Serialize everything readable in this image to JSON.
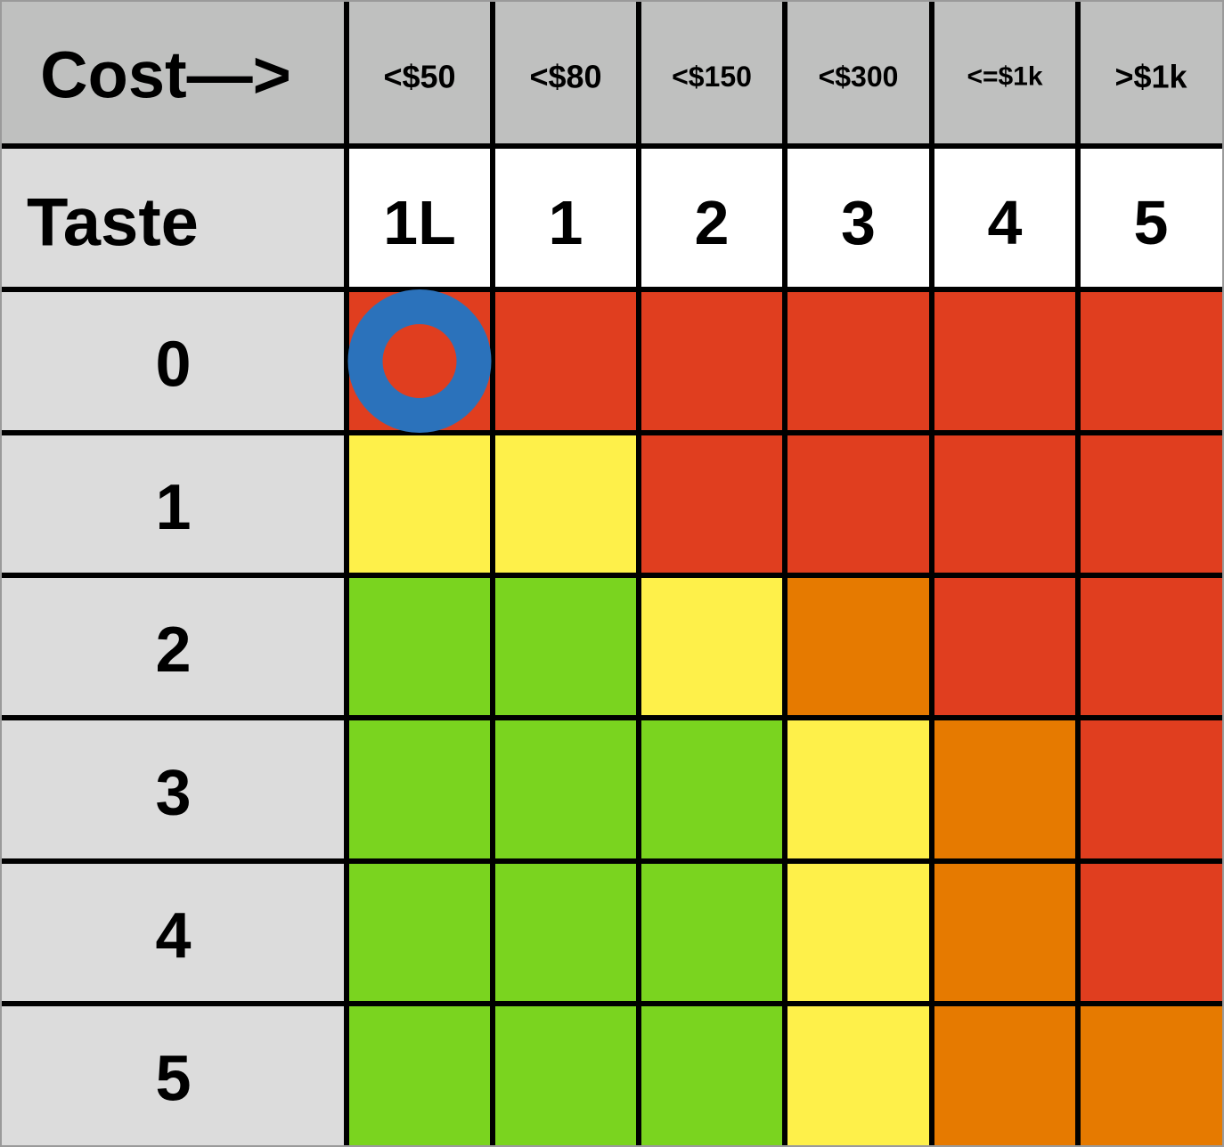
{
  "chart_data": {
    "type": "heatmap",
    "corner_label": "Cost—>",
    "cost_labels": [
      "<$50",
      "<$80",
      "<$150",
      "<$300",
      "<=$1k",
      ">$1k"
    ],
    "taste_label": "Taste",
    "tier_labels": [
      "1L",
      "1",
      "2",
      "3",
      "4",
      "5"
    ],
    "row_labels": [
      "0",
      "1",
      "2",
      "3",
      "4",
      "5"
    ],
    "cell_colors": [
      [
        "red",
        "red",
        "red",
        "red",
        "red",
        "red"
      ],
      [
        "yellow",
        "yellow",
        "red",
        "red",
        "red",
        "red"
      ],
      [
        "green",
        "green",
        "yellow",
        "orange",
        "red",
        "red"
      ],
      [
        "green",
        "green",
        "green",
        "yellow",
        "orange",
        "red"
      ],
      [
        "green",
        "green",
        "green",
        "yellow",
        "orange",
        "red"
      ],
      [
        "green",
        "green",
        "green",
        "yellow",
        "orange",
        "orange"
      ]
    ],
    "marker": {
      "row": "0",
      "column": "1L"
    }
  },
  "colors": {
    "red": "#e03e1f",
    "yellow": "#fef04a",
    "green": "#7ad41f",
    "orange": "#e67a00",
    "header_gray": "#bfc0bf",
    "row_label_gray": "#dcdcdc",
    "tier_white": "#ffffff",
    "grid_line": "#000000",
    "marker_ring": "#2b72bb"
  }
}
